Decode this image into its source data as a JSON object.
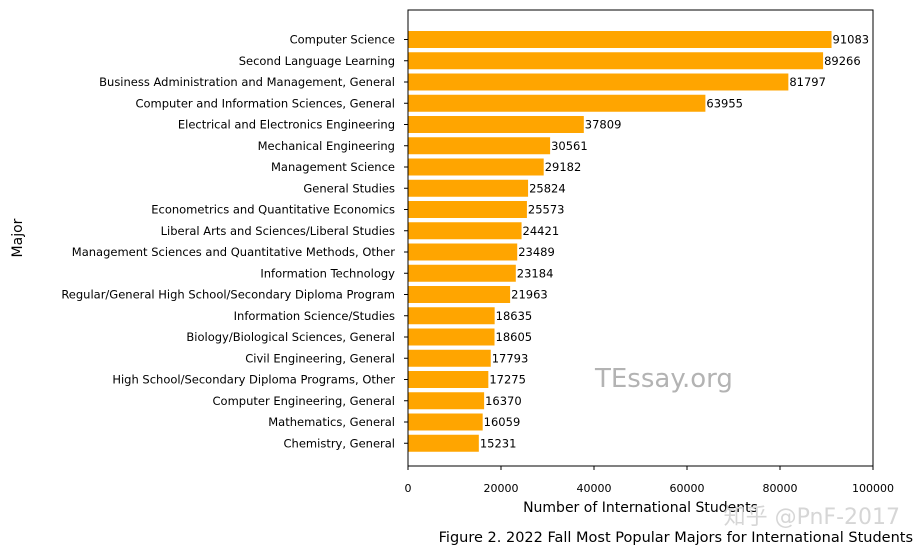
{
  "chart_data": {
    "type": "bar",
    "orientation": "horizontal",
    "categories": [
      "Computer Science",
      "Second Language Learning",
      "Business Administration and Management, General",
      "Computer and Information Sciences, General",
      "Electrical and Electronics Engineering",
      "Mechanical Engineering",
      "Management Science",
      "General Studies",
      "Econometrics and Quantitative Economics",
      "Liberal Arts and Sciences/Liberal Studies",
      "Management Sciences and Quantitative Methods, Other",
      "Information Technology",
      "Regular/General High School/Secondary Diploma Program",
      "Information Science/Studies",
      "Biology/Biological Sciences, General",
      "Civil Engineering, General",
      "High School/Secondary Diploma Programs, Other",
      "Computer Engineering, General",
      "Mathematics, General",
      "Chemistry, General"
    ],
    "values": [
      91083,
      89266,
      81797,
      63955,
      37809,
      30561,
      29182,
      25824,
      25573,
      24421,
      23489,
      23184,
      21963,
      18635,
      18605,
      17793,
      17275,
      16370,
      16059,
      15231
    ],
    "xlabel": "Number of International Students",
    "ylabel": "Major",
    "xlim": [
      0,
      100000
    ],
    "xticks": [
      0,
      20000,
      40000,
      60000,
      80000,
      100000
    ],
    "bar_color": "#ffa500",
    "grid": false
  },
  "caption": "Figure 2. 2022 Fall Most Popular Majors for International Students",
  "watermark": "TEssay.org",
  "watermark2": "知乎 @PnF-2017"
}
